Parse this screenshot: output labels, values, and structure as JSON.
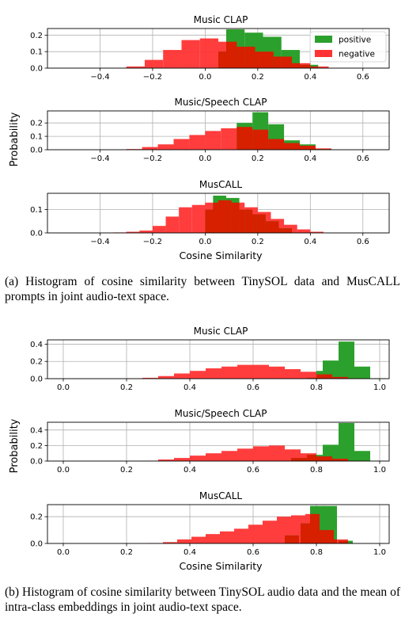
{
  "figure": {
    "ylabel": "Probability",
    "xlabel": "Cosine Similarity",
    "legend": {
      "positive": "positive",
      "negative": "negative",
      "placement": "upper right"
    },
    "colors": {
      "positive": "#2ca02c",
      "negative": "#ff3333",
      "overlap": "#d62000"
    },
    "caption_a": "(a) Histogram of cosine similarity between TinySOL data and MusCALL prompts in joint audio-text space.",
    "caption_b": "(b) Histogram of cosine similarity between TinySOL audio data and the mean of intra-class embeddings in joint audio-text space."
  },
  "chart_data": [
    {
      "type": "bar",
      "title": "Music CLAP",
      "section": "a",
      "legend": true,
      "xlim": [
        -0.6,
        0.7
      ],
      "ylim": [
        0,
        0.24
      ],
      "xticks": [
        "−0.4",
        "−0.2",
        "0.0",
        "0.2",
        "0.4",
        "0.6"
      ],
      "yticks": [
        "0.0",
        "0.1",
        "0.2"
      ],
      "bin_width": 0.07,
      "series": [
        {
          "name": "negative",
          "bins": [
            [
              -0.37,
              0.002
            ],
            [
              -0.3,
              0.01
            ],
            [
              -0.23,
              0.05
            ],
            [
              -0.16,
              0.11
            ],
            [
              -0.09,
              0.17
            ],
            [
              -0.02,
              0.18
            ],
            [
              0.05,
              0.16
            ],
            [
              0.12,
              0.13
            ],
            [
              0.19,
              0.1
            ],
            [
              0.26,
              0.07
            ],
            [
              0.33,
              0.03
            ],
            [
              0.4,
              0.01
            ]
          ]
        },
        {
          "name": "positive",
          "bins": [
            [
              0.05,
              0.1
            ],
            [
              0.08,
              0.235
            ],
            [
              0.15,
              0.215
            ],
            [
              0.22,
              0.19
            ],
            [
              0.29,
              0.11
            ],
            [
              0.36,
              0.02
            ]
          ]
        }
      ]
    },
    {
      "type": "bar",
      "title": "Music/Speech CLAP",
      "section": "a",
      "legend": false,
      "xlim": [
        -0.6,
        0.7
      ],
      "ylim": [
        0,
        0.29
      ],
      "xticks": [
        "−0.4",
        "−0.2",
        "0.0",
        "0.2",
        "0.4",
        "0.6"
      ],
      "yticks": [
        "0.0",
        "0.1",
        "0.2"
      ],
      "bin_width": 0.06,
      "series": [
        {
          "name": "negative",
          "bins": [
            [
              -0.3,
              0.005
            ],
            [
              -0.24,
              0.02
            ],
            [
              -0.18,
              0.04
            ],
            [
              -0.12,
              0.08
            ],
            [
              -0.06,
              0.11
            ],
            [
              0.0,
              0.14
            ],
            [
              0.06,
              0.16
            ],
            [
              0.12,
              0.17
            ],
            [
              0.18,
              0.15
            ],
            [
              0.24,
              0.08
            ],
            [
              0.3,
              0.05
            ],
            [
              0.36,
              0.03
            ],
            [
              0.42,
              0.01
            ]
          ]
        },
        {
          "name": "positive",
          "bins": [
            [
              0.12,
              0.2
            ],
            [
              0.18,
              0.28
            ],
            [
              0.24,
              0.19
            ],
            [
              0.3,
              0.07
            ],
            [
              0.36,
              0.04
            ],
            [
              0.42,
              0.005
            ]
          ]
        }
      ]
    },
    {
      "type": "bar",
      "title": "MusCALL",
      "section": "a",
      "legend": false,
      "xlim": [
        -0.6,
        0.7
      ],
      "ylim": [
        0,
        0.17
      ],
      "xticks": [
        "−0.4",
        "−0.2",
        "0.0",
        "0.2",
        "0.4",
        "0.6"
      ],
      "yticks": [
        "0.0",
        "0.1"
      ],
      "xlabel": "Cosine Similarity",
      "bin_width": 0.05,
      "series": [
        {
          "name": "negative",
          "bins": [
            [
              -0.35,
              0.002
            ],
            [
              -0.3,
              0.005
            ],
            [
              -0.25,
              0.01
            ],
            [
              -0.2,
              0.03
            ],
            [
              -0.15,
              0.07
            ],
            [
              -0.1,
              0.11
            ],
            [
              -0.05,
              0.12
            ],
            [
              0.0,
              0.13
            ],
            [
              0.05,
              0.14
            ],
            [
              0.1,
              0.13
            ],
            [
              0.15,
              0.11
            ],
            [
              0.2,
              0.09
            ],
            [
              0.25,
              0.06
            ],
            [
              0.3,
              0.035
            ],
            [
              0.35,
              0.015
            ],
            [
              0.4,
              0.005
            ]
          ]
        },
        {
          "name": "positive",
          "bins": [
            [
              0.0,
              0.1
            ],
            [
              0.03,
              0.16
            ],
            [
              0.08,
              0.15
            ],
            [
              0.13,
              0.1
            ],
            [
              0.18,
              0.08
            ],
            [
              0.23,
              0.05
            ],
            [
              0.28,
              0.02
            ]
          ]
        }
      ]
    },
    {
      "type": "bar",
      "title": "Music CLAP",
      "section": "b",
      "legend": false,
      "xlim": [
        -0.05,
        1.03
      ],
      "ylim": [
        0,
        0.45
      ],
      "xticks": [
        "0.0",
        "0.2",
        "0.4",
        "0.6",
        "0.8",
        "1.0"
      ],
      "yticks": [
        "0.0",
        "0.2",
        "0.4"
      ],
      "bin_width": 0.05,
      "series": [
        {
          "name": "negative",
          "bins": [
            [
              0.2,
              0.003
            ],
            [
              0.25,
              0.01
            ],
            [
              0.3,
              0.03
            ],
            [
              0.35,
              0.06
            ],
            [
              0.4,
              0.09
            ],
            [
              0.45,
              0.12
            ],
            [
              0.5,
              0.14
            ],
            [
              0.55,
              0.16
            ],
            [
              0.6,
              0.16
            ],
            [
              0.65,
              0.14
            ],
            [
              0.7,
              0.11
            ],
            [
              0.75,
              0.08
            ],
            [
              0.8,
              0.05
            ],
            [
              0.85,
              0.02
            ],
            [
              0.9,
              0.005
            ]
          ]
        },
        {
          "name": "positive",
          "bins": [
            [
              0.77,
              0.01
            ],
            [
              0.8,
              0.09
            ],
            [
              0.82,
              0.21
            ],
            [
              0.87,
              0.43
            ],
            [
              0.92,
              0.14
            ],
            [
              0.97,
              0.005
            ]
          ]
        }
      ]
    },
    {
      "type": "bar",
      "title": "Music/Speech CLAP",
      "section": "b",
      "legend": false,
      "xlim": [
        -0.05,
        1.03
      ],
      "ylim": [
        0,
        0.5
      ],
      "xticks": [
        "0.0",
        "0.2",
        "0.4",
        "0.6",
        "0.8",
        "1.0"
      ],
      "yticks": [
        "0.0",
        "0.2",
        "0.4"
      ],
      "bin_width": 0.05,
      "series": [
        {
          "name": "negative",
          "bins": [
            [
              0.25,
              0.005
            ],
            [
              0.3,
              0.02
            ],
            [
              0.35,
              0.04
            ],
            [
              0.4,
              0.07
            ],
            [
              0.45,
              0.1
            ],
            [
              0.5,
              0.13
            ],
            [
              0.55,
              0.16
            ],
            [
              0.6,
              0.19
            ],
            [
              0.65,
              0.2
            ],
            [
              0.7,
              0.15
            ],
            [
              0.75,
              0.1
            ],
            [
              0.8,
              0.06
            ],
            [
              0.85,
              0.03
            ],
            [
              0.9,
              0.005
            ]
          ]
        },
        {
          "name": "positive",
          "bins": [
            [
              0.72,
              0.04
            ],
            [
              0.77,
              0.08
            ],
            [
              0.82,
              0.21
            ],
            [
              0.87,
              0.49
            ],
            [
              0.92,
              0.13
            ],
            [
              0.97,
              0.005
            ]
          ]
        }
      ]
    },
    {
      "type": "bar",
      "title": "MusCALL",
      "section": "b",
      "legend": false,
      "xlim": [
        -0.05,
        1.03
      ],
      "ylim": [
        0,
        0.29
      ],
      "xticks": [
        "0.0",
        "0.2",
        "0.4",
        "0.6",
        "0.8",
        "1.0"
      ],
      "yticks": [
        "0.0",
        "0.2"
      ],
      "xlabel": "Cosine Similarity",
      "bin_width": 0.045,
      "series": [
        {
          "name": "negative",
          "bins": [
            [
              0.27,
              0.003
            ],
            [
              0.315,
              0.01
            ],
            [
              0.36,
              0.03
            ],
            [
              0.405,
              0.05
            ],
            [
              0.45,
              0.07
            ],
            [
              0.495,
              0.09
            ],
            [
              0.54,
              0.11
            ],
            [
              0.585,
              0.14
            ],
            [
              0.63,
              0.17
            ],
            [
              0.675,
              0.2
            ],
            [
              0.72,
              0.21
            ],
            [
              0.765,
              0.22
            ],
            [
              0.81,
              0.1
            ],
            [
              0.855,
              0.03
            ]
          ]
        },
        {
          "name": "positive",
          "bins": [
            [
              0.7,
              0.06
            ],
            [
              0.75,
              0.15
            ],
            [
              0.78,
              0.28
            ],
            [
              0.82,
              0.28
            ],
            [
              0.87,
              0.02
            ]
          ]
        }
      ]
    }
  ]
}
